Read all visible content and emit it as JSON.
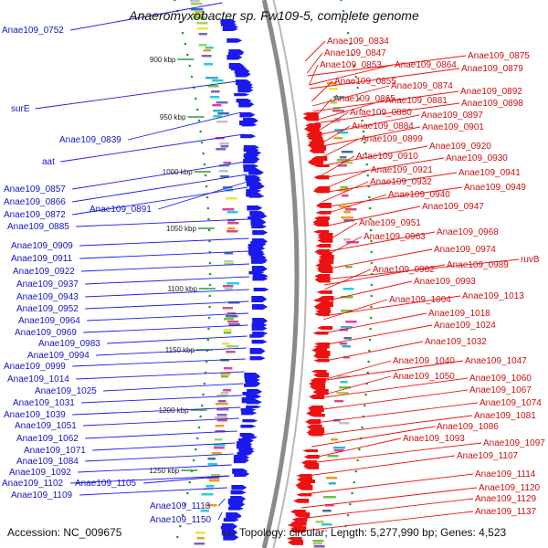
{
  "title": "Anaeromyxobacter sp. Fw109-5, complete genome",
  "accession": "Accession: NC_009675",
  "summary": "Topology: circular; Length: 5,277,990 bp; Genes: 4,523",
  "ticks": [
    "900 kbp",
    "950 kbp",
    "1000 kbp",
    "1050 kbp",
    "1100 kbp",
    "1150 kbp",
    "1200 kbp",
    "1250 kbp",
    "130"
  ],
  "colors": {
    "forward": "#1a1aee",
    "reverse": "#ee1111",
    "backbone": "#8a8a8a",
    "tick": "#2f9a2f"
  },
  "left_labels": [
    "Anae109_0752",
    "surE",
    "Anae109_0839",
    "aat",
    "Anae109_0857",
    "Anae109_0866",
    "Anae109_0872",
    "Anae109_0891",
    "Anae109_0885",
    "Anae109_0909",
    "Anae109_0911",
    "Anae109_0922",
    "Anae109_0937",
    "Anae109_0943",
    "Anae109_0952",
    "Anae109_0964",
    "Anae109_0969",
    "Anae109_0983",
    "Anae109_0994",
    "Anae109_0999",
    "Anae109_1014",
    "Anae109_1025",
    "Anae109_1031",
    "Anae109_1039",
    "Anae109_1051",
    "Anae109_1062",
    "Anae109_1071",
    "Anae109_1084",
    "Anae109_1092",
    "Anae109_1102",
    "Anae109_1105",
    "Anae109_1109",
    "Anae109_1113",
    "Anae109_1150"
  ],
  "right_labels": [
    "Anae109_0834",
    "Anae109_0847",
    "Anae109_0853",
    "Anae109_0864",
    "Anae109_0875",
    "Anae109_0879",
    "Anae109_0855",
    "Anae109_0874",
    "Anae109_0892",
    "Anae109_0865",
    "Anae109_0881",
    "Anae109_0898",
    "Anae109_0880",
    "Anae109_0897",
    "Anae109_0884",
    "Anae109_0901",
    "Anae109_0899",
    "Anae109_0920",
    "Anae109_0910",
    "Anae109_0930",
    "Anae109_0921",
    "Anae109_0941",
    "Anae109_0932",
    "Anae109_0949",
    "Anae109_0940",
    "Anae109_0947",
    "Anae109_0951",
    "Anae109_0968",
    "Anae109_0963",
    "Anae109_0974",
    "Anae109_0982",
    "Anae109_0989",
    "ruvB",
    "Anae109_0993",
    "Anae109_1004",
    "Anae109_1013",
    "Anae109_1018",
    "Anae109_1024",
    "Anae109_1032",
    "Anae109_1040",
    "Anae109_1047",
    "Anae109_1050",
    "Anae109_1060",
    "Anae109_1067",
    "Anae109_1074",
    "Anae109_1081",
    "Anae109_1086",
    "Anae109_1093",
    "Anae109_1097",
    "Anae109_1107",
    "Anae109_1114",
    "Anae109_1120",
    "Anae109_1129",
    "Anae109_1137"
  ]
}
